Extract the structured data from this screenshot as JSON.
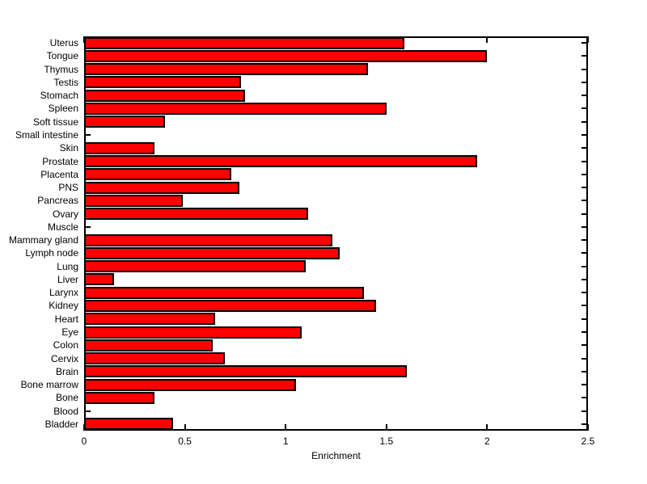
{
  "figure": {
    "background": "#FFFFFF",
    "axis_color": "#000000"
  },
  "chart_data": {
    "type": "bar",
    "orientation": "horizontal",
    "title": "",
    "xlabel": "Enrichment",
    "ylabel": "",
    "categories": [
      "Uterus",
      "Tongue",
      "Thymus",
      "Testis",
      "Stomach",
      "Spleen",
      "Soft tissue",
      "Small intestine",
      "Skin",
      "Prostate",
      "Placenta",
      "PNS",
      "Pancreas",
      "Ovary",
      "Muscle",
      "Mammary gland",
      "Lymph node",
      "Lung",
      "Liver",
      "Larynx",
      "Kidney",
      "Heart",
      "Eye",
      "Colon",
      "Cervix",
      "Brain",
      "Bone marrow",
      "Bone",
      "Blood",
      "Bladder"
    ],
    "values": [
      1.59,
      2.0,
      1.41,
      0.78,
      0.8,
      1.5,
      0.4,
      0,
      0.35,
      1.95,
      0.73,
      0.77,
      0.49,
      1.11,
      0,
      1.23,
      1.27,
      1.1,
      0.15,
      1.39,
      1.45,
      0.65,
      1.08,
      0.64,
      0.7,
      1.6,
      1.05,
      0.35,
      0,
      0.44
    ],
    "xlim": [
      0,
      2.5
    ],
    "xticks": [
      0,
      0.5,
      1,
      1.5,
      2,
      2.5
    ],
    "xtick_labels": [
      "0",
      "0.5",
      "1",
      "1.5",
      "2",
      "2.5"
    ],
    "bar_color": "#FF0000",
    "bar_edge_color": "#000000",
    "grid": false
  }
}
